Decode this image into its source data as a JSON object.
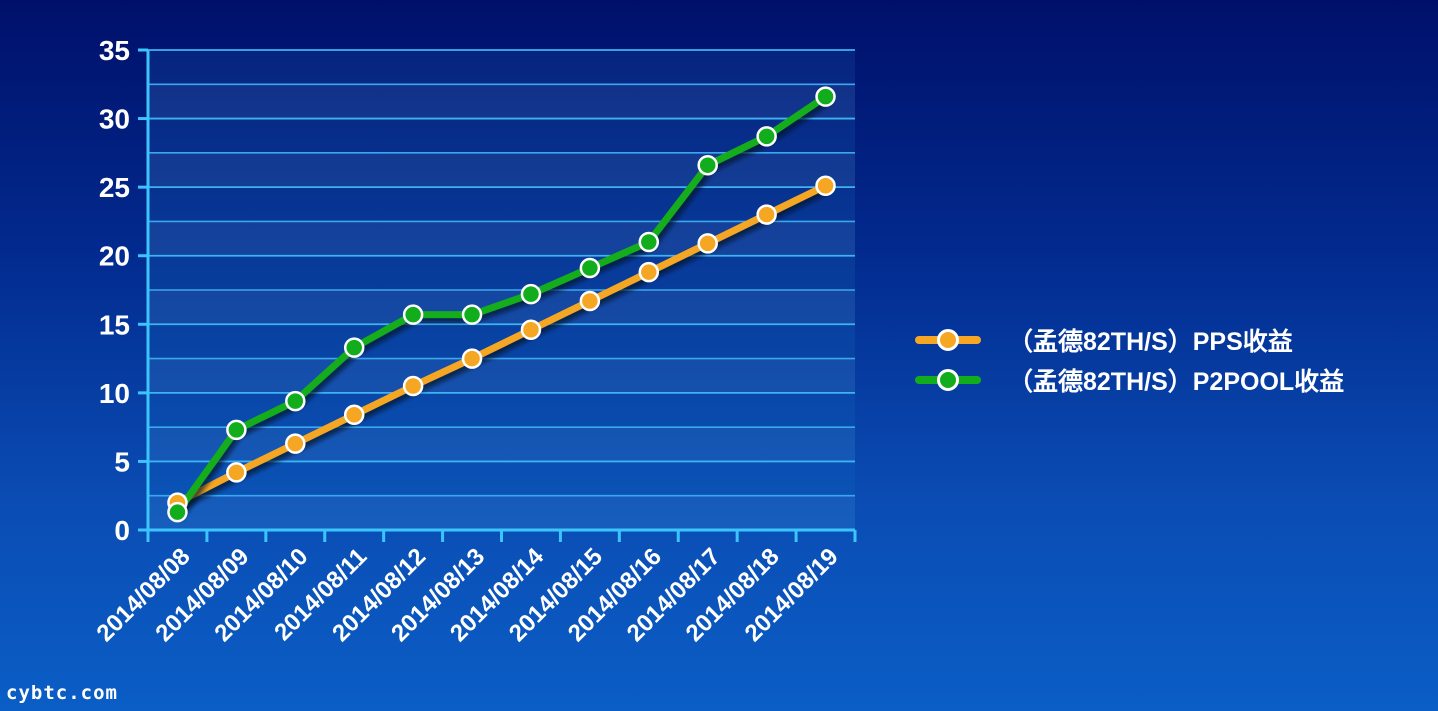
{
  "chart_data": {
    "type": "line",
    "title": "",
    "xlabel": "",
    "ylabel": "",
    "categories": [
      "2014/08/08",
      "2014/08/09",
      "2014/08/10",
      "2014/08/11",
      "2014/08/12",
      "2014/08/13",
      "2014/08/14",
      "2014/08/15",
      "2014/08/16",
      "2014/08/17",
      "2014/08/18",
      "2014/08/19"
    ],
    "ylim": [
      0,
      35
    ],
    "yticks": [
      0,
      5,
      10,
      15,
      20,
      25,
      30,
      35
    ],
    "grid": true,
    "legend_position": "right",
    "series": [
      {
        "name": "（孟德82TH/S）PPS收益",
        "color": "#f5a623",
        "values": [
          2.0,
          4.2,
          6.3,
          8.4,
          10.5,
          12.5,
          14.6,
          16.7,
          18.8,
          20.9,
          23.0,
          25.1
        ]
      },
      {
        "name": "（孟德82TH/S）P2POOL收益",
        "color": "#12ad1c",
        "values": [
          1.3,
          7.3,
          9.4,
          13.3,
          15.7,
          15.7,
          17.2,
          19.1,
          21.0,
          26.6,
          28.7,
          31.6
        ]
      }
    ]
  },
  "watermark": "cybtc.com"
}
